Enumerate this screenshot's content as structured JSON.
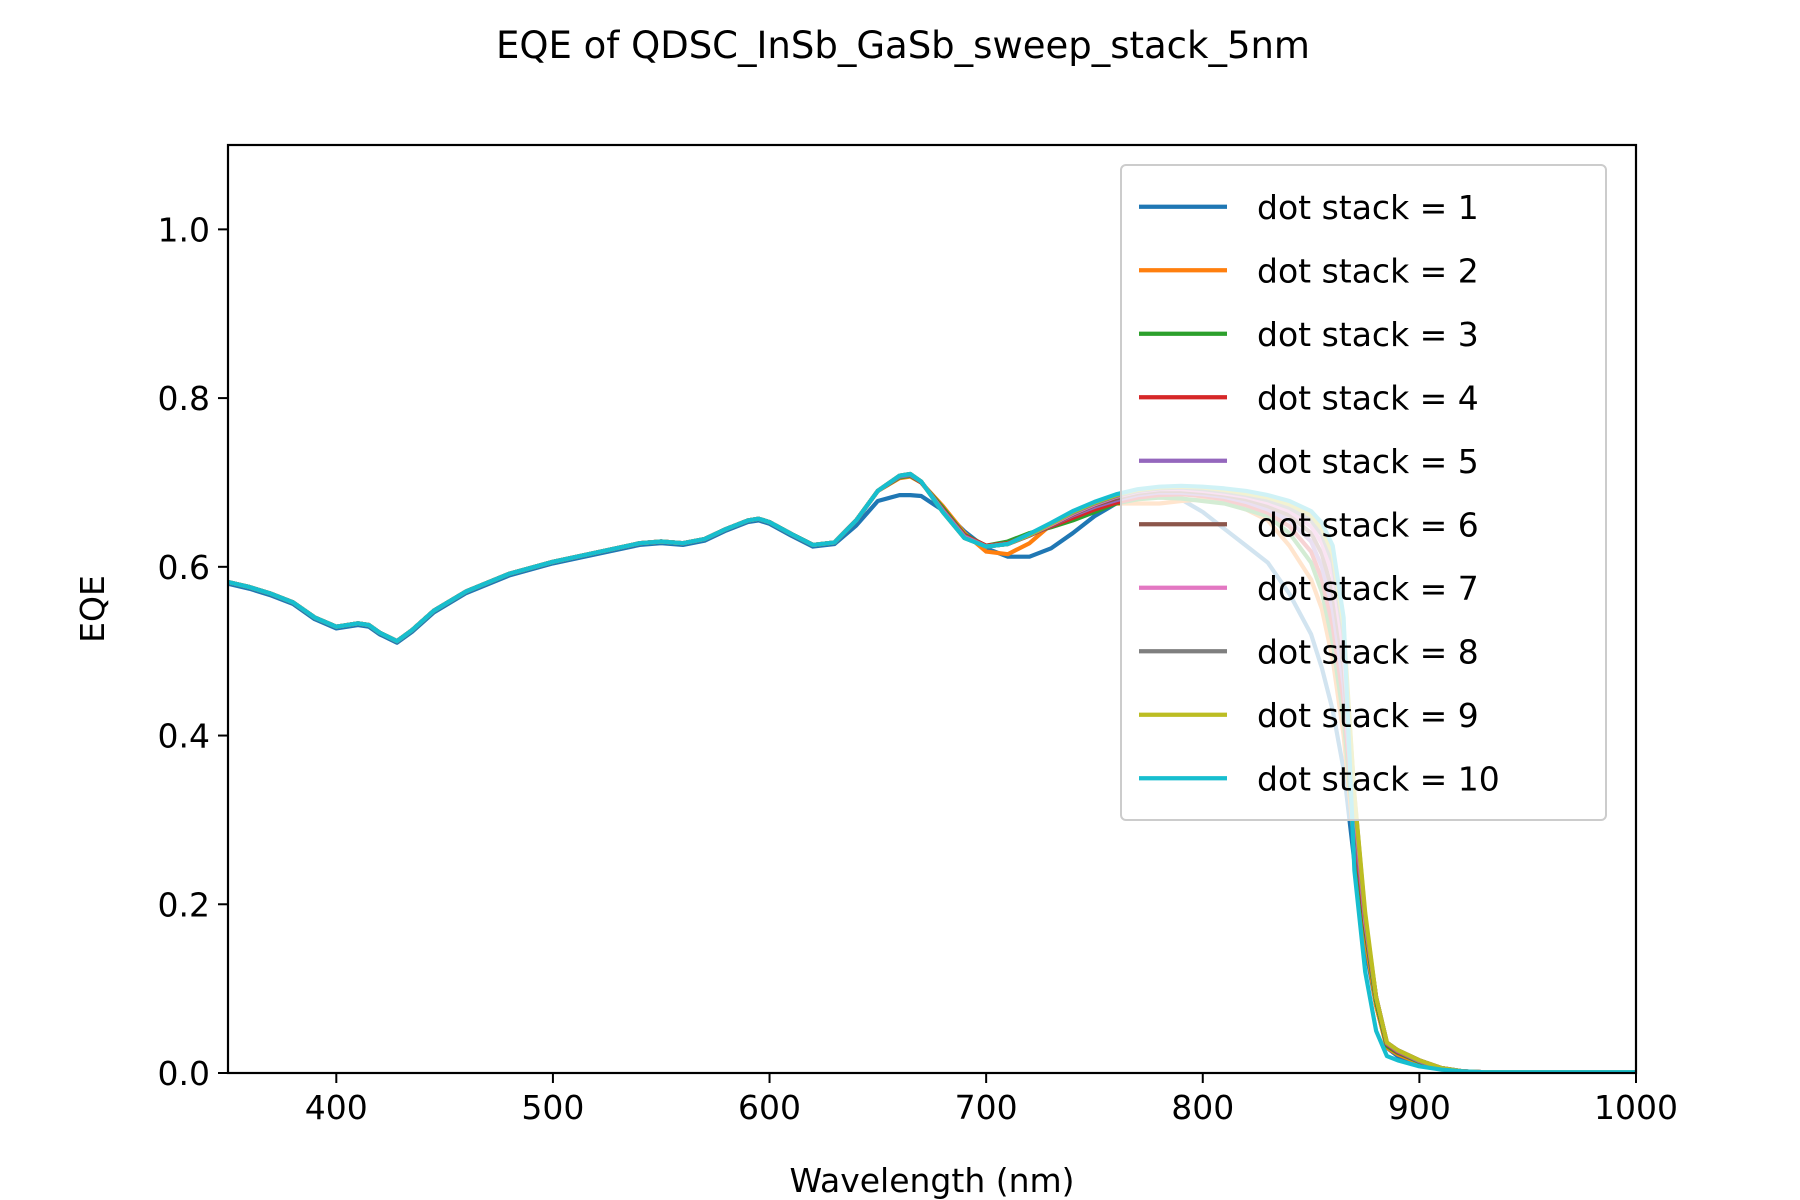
{
  "chart_data": {
    "type": "line",
    "title": "EQE of  QDSC_InSb_GaSb_sweep_stack_5nm",
    "xlabel": "Wavelength (nm)",
    "ylabel": "EQE",
    "xlim": [
      350,
      1000
    ],
    "ylim": [
      0,
      1.1
    ],
    "xticks": [
      400,
      500,
      600,
      700,
      800,
      900,
      1000
    ],
    "yticks": [
      0.0,
      0.2,
      0.4,
      0.6,
      0.8,
      1.0
    ],
    "xtick_labels": [
      "400",
      "500",
      "600",
      "700",
      "800",
      "900",
      "1000"
    ],
    "ytick_labels": [
      "0.0",
      "0.2",
      "0.4",
      "0.6",
      "0.8",
      "1.0"
    ],
    "grid": false,
    "legend_position": "top-right",
    "x": [
      350,
      360,
      370,
      380,
      390,
      400,
      410,
      415,
      420,
      428,
      435,
      445,
      460,
      480,
      500,
      520,
      540,
      550,
      560,
      570,
      580,
      590,
      595,
      600,
      610,
      620,
      630,
      640,
      650,
      660,
      665,
      670,
      680,
      690,
      700,
      710,
      720,
      730,
      740,
      750,
      760,
      770,
      780,
      790,
      800,
      810,
      820,
      830,
      840,
      850,
      855,
      860,
      865,
      870,
      875,
      880,
      885,
      890,
      900,
      910,
      920,
      930,
      940,
      960,
      980,
      1000
    ],
    "series": [
      {
        "name": "dot stack = 1",
        "color": "#1f77b4",
        "values": [
          0.58,
          0.574,
          0.566,
          0.556,
          0.538,
          0.527,
          0.531,
          0.529,
          0.52,
          0.51,
          0.523,
          0.546,
          0.569,
          0.59,
          0.604,
          0.615,
          0.626,
          0.628,
          0.626,
          0.631,
          0.643,
          0.653,
          0.655,
          0.651,
          0.637,
          0.624,
          0.627,
          0.649,
          0.678,
          0.685,
          0.685,
          0.684,
          0.667,
          0.642,
          0.622,
          0.612,
          0.612,
          0.622,
          0.64,
          0.66,
          0.675,
          0.684,
          0.686,
          0.68,
          0.665,
          0.645,
          0.625,
          0.605,
          0.568,
          0.52,
          0.48,
          0.43,
          0.36,
          0.25,
          0.15,
          0.08,
          0.03,
          0.02,
          0.01,
          0.005,
          0.002,
          0.001,
          0.001,
          0.001,
          0.001,
          0.001
        ]
      },
      {
        "name": "dot stack = 2",
        "color": "#ff7f0e",
        "values": [
          0.582,
          0.576,
          0.568,
          0.558,
          0.54,
          0.529,
          0.533,
          0.531,
          0.522,
          0.512,
          0.525,
          0.548,
          0.571,
          0.592,
          0.606,
          0.617,
          0.628,
          0.63,
          0.628,
          0.633,
          0.645,
          0.655,
          0.657,
          0.653,
          0.639,
          0.626,
          0.629,
          0.655,
          0.69,
          0.705,
          0.707,
          0.7,
          0.672,
          0.64,
          0.618,
          0.615,
          0.628,
          0.65,
          0.665,
          0.673,
          0.675,
          0.675,
          0.675,
          0.678,
          0.68,
          0.676,
          0.668,
          0.655,
          0.625,
          0.585,
          0.55,
          0.49,
          0.4,
          0.27,
          0.16,
          0.08,
          0.03,
          0.022,
          0.012,
          0.005,
          0.002,
          0.001,
          0.001,
          0.001,
          0.001,
          0.001
        ]
      },
      {
        "name": "dot stack = 3",
        "color": "#2ca02c",
        "values": [
          0.582,
          0.576,
          0.568,
          0.558,
          0.54,
          0.529,
          0.533,
          0.531,
          0.522,
          0.512,
          0.525,
          0.548,
          0.571,
          0.592,
          0.606,
          0.617,
          0.628,
          0.63,
          0.628,
          0.633,
          0.645,
          0.655,
          0.657,
          0.653,
          0.639,
          0.626,
          0.629,
          0.655,
          0.69,
          0.706,
          0.708,
          0.7,
          0.67,
          0.638,
          0.625,
          0.63,
          0.64,
          0.647,
          0.655,
          0.665,
          0.675,
          0.68,
          0.682,
          0.681,
          0.678,
          0.675,
          0.668,
          0.66,
          0.64,
          0.605,
          0.57,
          0.51,
          0.42,
          0.28,
          0.17,
          0.085,
          0.032,
          0.024,
          0.013,
          0.006,
          0.002,
          0.001,
          0.001,
          0.001,
          0.001,
          0.001
        ]
      },
      {
        "name": "dot stack = 4",
        "color": "#d62728",
        "values": [
          0.582,
          0.576,
          0.568,
          0.558,
          0.54,
          0.529,
          0.533,
          0.531,
          0.522,
          0.512,
          0.525,
          0.548,
          0.571,
          0.592,
          0.606,
          0.617,
          0.628,
          0.63,
          0.628,
          0.633,
          0.645,
          0.655,
          0.657,
          0.653,
          0.639,
          0.626,
          0.629,
          0.655,
          0.69,
          0.707,
          0.709,
          0.7,
          0.668,
          0.637,
          0.625,
          0.628,
          0.638,
          0.648,
          0.658,
          0.668,
          0.676,
          0.682,
          0.685,
          0.686,
          0.684,
          0.68,
          0.673,
          0.664,
          0.648,
          0.618,
          0.585,
          0.53,
          0.44,
          0.29,
          0.175,
          0.09,
          0.034,
          0.025,
          0.014,
          0.006,
          0.002,
          0.001,
          0.001,
          0.001,
          0.001,
          0.001
        ]
      },
      {
        "name": "dot stack = 5",
        "color": "#9467bd",
        "values": [
          0.582,
          0.576,
          0.568,
          0.558,
          0.54,
          0.529,
          0.533,
          0.531,
          0.522,
          0.512,
          0.525,
          0.548,
          0.571,
          0.592,
          0.606,
          0.617,
          0.628,
          0.63,
          0.628,
          0.633,
          0.645,
          0.655,
          0.657,
          0.653,
          0.639,
          0.626,
          0.629,
          0.655,
          0.69,
          0.707,
          0.709,
          0.701,
          0.667,
          0.636,
          0.624,
          0.627,
          0.637,
          0.649,
          0.661,
          0.671,
          0.679,
          0.685,
          0.688,
          0.688,
          0.686,
          0.683,
          0.677,
          0.668,
          0.655,
          0.63,
          0.6,
          0.55,
          0.46,
          0.3,
          0.18,
          0.09,
          0.035,
          0.026,
          0.014,
          0.006,
          0.002,
          0.001,
          0.001,
          0.001,
          0.001,
          0.001
        ]
      },
      {
        "name": "dot stack = 6",
        "color": "#8c564b",
        "values": [
          0.582,
          0.576,
          0.568,
          0.558,
          0.54,
          0.529,
          0.533,
          0.531,
          0.522,
          0.512,
          0.525,
          0.548,
          0.571,
          0.592,
          0.606,
          0.617,
          0.628,
          0.63,
          0.628,
          0.633,
          0.645,
          0.655,
          0.657,
          0.653,
          0.639,
          0.626,
          0.629,
          0.655,
          0.69,
          0.708,
          0.71,
          0.701,
          0.666,
          0.635,
          0.624,
          0.627,
          0.637,
          0.649,
          0.662,
          0.673,
          0.681,
          0.687,
          0.69,
          0.69,
          0.688,
          0.685,
          0.68,
          0.672,
          0.661,
          0.64,
          0.615,
          0.57,
          0.48,
          0.31,
          0.18,
          0.09,
          0.036,
          0.027,
          0.015,
          0.006,
          0.002,
          0.001,
          0.001,
          0.001,
          0.001,
          0.001
        ]
      },
      {
        "name": "dot stack = 7",
        "color": "#e377c2",
        "values": [
          0.582,
          0.576,
          0.568,
          0.558,
          0.54,
          0.529,
          0.533,
          0.531,
          0.522,
          0.512,
          0.525,
          0.548,
          0.571,
          0.592,
          0.606,
          0.617,
          0.628,
          0.63,
          0.628,
          0.633,
          0.645,
          0.655,
          0.657,
          0.653,
          0.639,
          0.626,
          0.629,
          0.655,
          0.69,
          0.708,
          0.71,
          0.701,
          0.666,
          0.635,
          0.624,
          0.627,
          0.638,
          0.65,
          0.663,
          0.674,
          0.683,
          0.689,
          0.692,
          0.692,
          0.69,
          0.687,
          0.683,
          0.676,
          0.666,
          0.648,
          0.628,
          0.59,
          0.5,
          0.32,
          0.18,
          0.09,
          0.036,
          0.027,
          0.015,
          0.006,
          0.002,
          0.001,
          0.001,
          0.001,
          0.001,
          0.001
        ]
      },
      {
        "name": "dot stack = 8",
        "color": "#7f7f7f",
        "values": [
          0.582,
          0.576,
          0.568,
          0.558,
          0.54,
          0.529,
          0.533,
          0.531,
          0.522,
          0.512,
          0.525,
          0.548,
          0.571,
          0.592,
          0.606,
          0.617,
          0.628,
          0.63,
          0.628,
          0.633,
          0.645,
          0.655,
          0.657,
          0.653,
          0.639,
          0.626,
          0.629,
          0.655,
          0.69,
          0.708,
          0.71,
          0.701,
          0.665,
          0.634,
          0.624,
          0.627,
          0.638,
          0.651,
          0.664,
          0.675,
          0.684,
          0.69,
          0.693,
          0.694,
          0.692,
          0.689,
          0.685,
          0.679,
          0.67,
          0.655,
          0.638,
          0.605,
          0.52,
          0.33,
          0.185,
          0.09,
          0.036,
          0.027,
          0.015,
          0.006,
          0.002,
          0.001,
          0.001,
          0.001,
          0.001,
          0.001
        ]
      },
      {
        "name": "dot stack = 9",
        "color": "#bcbd22",
        "values": [
          0.582,
          0.576,
          0.568,
          0.558,
          0.54,
          0.529,
          0.533,
          0.531,
          0.522,
          0.512,
          0.525,
          0.548,
          0.571,
          0.592,
          0.606,
          0.617,
          0.628,
          0.63,
          0.628,
          0.633,
          0.645,
          0.655,
          0.657,
          0.653,
          0.639,
          0.626,
          0.629,
          0.655,
          0.69,
          0.708,
          0.71,
          0.701,
          0.665,
          0.634,
          0.624,
          0.627,
          0.638,
          0.651,
          0.665,
          0.676,
          0.685,
          0.691,
          0.694,
          0.695,
          0.694,
          0.691,
          0.687,
          0.682,
          0.674,
          0.661,
          0.645,
          0.615,
          0.53,
          0.33,
          0.19,
          0.09,
          0.036,
          0.027,
          0.015,
          0.006,
          0.002,
          0.001,
          0.001,
          0.001,
          0.001,
          0.001
        ]
      },
      {
        "name": "dot stack = 10",
        "color": "#17becf",
        "values": [
          0.582,
          0.576,
          0.568,
          0.558,
          0.54,
          0.529,
          0.533,
          0.531,
          0.522,
          0.512,
          0.525,
          0.548,
          0.571,
          0.592,
          0.606,
          0.617,
          0.628,
          0.63,
          0.628,
          0.633,
          0.645,
          0.655,
          0.657,
          0.653,
          0.639,
          0.626,
          0.629,
          0.655,
          0.69,
          0.708,
          0.71,
          0.701,
          0.665,
          0.634,
          0.624,
          0.627,
          0.639,
          0.652,
          0.666,
          0.677,
          0.686,
          0.692,
          0.695,
          0.696,
          0.695,
          0.693,
          0.69,
          0.685,
          0.678,
          0.666,
          0.652,
          0.625,
          0.54,
          0.24,
          0.12,
          0.05,
          0.02,
          0.015,
          0.008,
          0.004,
          0.002,
          0.001,
          0.001,
          0.001,
          0.001,
          0.001
        ]
      }
    ]
  }
}
